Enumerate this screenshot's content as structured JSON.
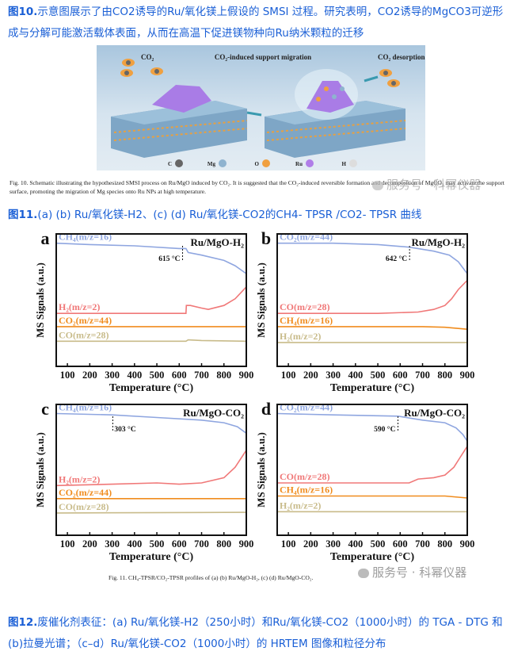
{
  "paragraphs": {
    "fig10": {
      "label": "图10.",
      "text": "示意图展示了由CO2诱导的Ru/氧化镁上假设的 SMSI 过程。研究表明，CO2诱导的MgCO3可逆形成与分解可能激活载体表面，从而在高温下促进镁物种向Ru纳米颗粒的迁移"
    },
    "fig11": {
      "label": "图11.",
      "text": "(a) (b) Ru/氧化镁-H2、(c) (d) Ru/氧化镁-CO2的CH4- TPSR /CO2- TPSR 曲线"
    },
    "fig12": {
      "label": "图12.",
      "text": "废催化剂表征：(a) Ru/氧化镁-H2（250小时）和Ru/氧化镁-CO2（1000小时）的 TGA - DTG 和(b)拉曼光谱；（c–d）Ru/氧化镁-CO2（1000小时）的 HRTEM 图像和粒径分布"
    }
  },
  "figure10": {
    "labels": {
      "co2": "CO₂",
      "migration": "CO₂-induced support migration",
      "desorption": "CO₂ desorption"
    },
    "legend": [
      {
        "symbol": "C",
        "color": "#666666"
      },
      {
        "symbol": "Mg",
        "color": "#8fb3cf"
      },
      {
        "symbol": "O",
        "color": "#f0a040"
      },
      {
        "symbol": "Ru",
        "color": "#b07ee8"
      },
      {
        "symbol": "H",
        "color": "#dddddd"
      }
    ],
    "caption": "Fig. 10. Schematic illustrating the hypothesized SMSI process on Ru/MgO induced by CO₂. It is suggested that the CO₂-induced reversible formation and decomposition of MgCO₃ may activate the support surface, promoting the migration of Mg species onto Ru NPs at high temperature."
  },
  "figure11_caption": "Fig. 11. CH₄-TPSR/CO₂-TPSR profiles of (a) (b) Ru/MgO-H₂, (c) (d) Ru/MgO-CO₂.",
  "watermark": "服务号 · 科幂仪器",
  "chart_data": [
    {
      "type": "line",
      "panel": "a",
      "title": "Ru/MgO-H₂",
      "xlabel": "Temperature (°C)",
      "ylabel": "MS Signals (a.u.)",
      "xlim": [
        50,
        900
      ],
      "xticks": [
        100,
        200,
        300,
        400,
        500,
        600,
        700,
        800,
        900
      ],
      "annotation": {
        "x": 615,
        "text": "615 °C"
      },
      "series": [
        {
          "name": "CH₄(m/z=16)",
          "color": "#8fa6e0",
          "x": [
            50,
            200,
            400,
            600,
            630,
            640,
            700,
            800,
            850,
            900
          ],
          "y": [
            0.93,
            0.92,
            0.91,
            0.89,
            0.89,
            0.86,
            0.84,
            0.8,
            0.76,
            0.7
          ]
        },
        {
          "name": "H₂(m/z=2)",
          "color": "#f07878",
          "x": [
            50,
            300,
            630,
            632,
            650,
            700,
            730,
            800,
            850,
            900
          ],
          "y": [
            0.4,
            0.4,
            0.4,
            0.46,
            0.46,
            0.44,
            0.43,
            0.46,
            0.51,
            0.6
          ]
        },
        {
          "name": "CO₂(m/z=44)",
          "color": "#f08c1e",
          "x": [
            50,
            900
          ],
          "y": [
            0.3,
            0.3
          ]
        },
        {
          "name": "CO(m/z=28)",
          "color": "#c8bb8a",
          "x": [
            50,
            630,
            640,
            700,
            900
          ],
          "y": [
            0.19,
            0.19,
            0.2,
            0.195,
            0.19
          ]
        }
      ]
    },
    {
      "type": "line",
      "panel": "b",
      "title": "Ru/MgO-H₂",
      "xlabel": "Temperature (°C)",
      "ylabel": "MS Signals (a.u.)",
      "xlim": [
        50,
        900
      ],
      "xticks": [
        100,
        200,
        300,
        400,
        500,
        600,
        700,
        800,
        900
      ],
      "annotation": {
        "x": 642,
        "text": "642 °C"
      },
      "series": [
        {
          "name": "CO₂(m/z=44)",
          "color": "#8fa6e0",
          "x": [
            50,
            300,
            500,
            640,
            750,
            820,
            860,
            900
          ],
          "y": [
            0.93,
            0.93,
            0.92,
            0.9,
            0.87,
            0.84,
            0.79,
            0.7
          ]
        },
        {
          "name": "CO(m/z=28)",
          "color": "#f07878",
          "x": [
            50,
            500,
            680,
            750,
            800,
            830,
            860,
            900
          ],
          "y": [
            0.4,
            0.4,
            0.41,
            0.43,
            0.46,
            0.51,
            0.58,
            0.65
          ]
        },
        {
          "name": "CH₄(m/z=16)",
          "color": "#f08c1e",
          "x": [
            50,
            700,
            800,
            900
          ],
          "y": [
            0.3,
            0.3,
            0.295,
            0.28
          ]
        },
        {
          "name": "H₂(m/z=2)",
          "color": "#c8bb8a",
          "x": [
            50,
            900
          ],
          "y": [
            0.18,
            0.18
          ]
        }
      ]
    },
    {
      "type": "line",
      "panel": "c",
      "title": "Ru/MgO-CO₂",
      "xlabel": "Temperature (°C)",
      "ylabel": "MS Signals (a.u.)",
      "xlim": [
        50,
        900
      ],
      "xticks": [
        100,
        200,
        300,
        400,
        500,
        600,
        700,
        800,
        900
      ],
      "annotation": {
        "x": 303,
        "text": "303 °C"
      },
      "series": [
        {
          "name": "CH₄(m/z=16)",
          "color": "#8fa6e0",
          "x": [
            50,
            300,
            500,
            700,
            800,
            860,
            900
          ],
          "y": [
            0.93,
            0.92,
            0.9,
            0.88,
            0.86,
            0.83,
            0.78
          ]
        },
        {
          "name": "H₂(m/z=2)",
          "color": "#f07878",
          "x": [
            50,
            300,
            500,
            600,
            700,
            800,
            850,
            900
          ],
          "y": [
            0.38,
            0.39,
            0.4,
            0.39,
            0.4,
            0.44,
            0.52,
            0.65
          ]
        },
        {
          "name": "CO₂(m/z=44)",
          "color": "#f08c1e",
          "x": [
            50,
            900
          ],
          "y": [
            0.28,
            0.28
          ]
        },
        {
          "name": "CO(m/z=28)",
          "color": "#c8bb8a",
          "x": [
            50,
            900
          ],
          "y": [
            0.17,
            0.175
          ]
        }
      ]
    },
    {
      "type": "line",
      "panel": "d",
      "title": "Ru/MgO-CO₂",
      "xlabel": "Temperature (°C)",
      "ylabel": "MS Signals (a.u.)",
      "xlim": [
        50,
        900
      ],
      "xticks": [
        100,
        200,
        300,
        400,
        500,
        600,
        700,
        800,
        900
      ],
      "annotation": {
        "x": 590,
        "text": "590 °C"
      },
      "series": [
        {
          "name": "CO₂(m/z=44)",
          "color": "#8fa6e0",
          "x": [
            50,
            300,
            590,
            700,
            800,
            850,
            880,
            900
          ],
          "y": [
            0.93,
            0.92,
            0.91,
            0.88,
            0.86,
            0.82,
            0.77,
            0.72
          ]
        },
        {
          "name": "CO(m/z=28)",
          "color": "#f07878",
          "x": [
            50,
            640,
            680,
            750,
            800,
            840,
            870,
            900
          ],
          "y": [
            0.4,
            0.4,
            0.43,
            0.44,
            0.46,
            0.52,
            0.6,
            0.68
          ]
        },
        {
          "name": "CH₄(m/z=16)",
          "color": "#f08c1e",
          "x": [
            50,
            800,
            900
          ],
          "y": [
            0.3,
            0.3,
            0.285
          ]
        },
        {
          "name": "H₂(m/z=2)",
          "color": "#c8bb8a",
          "x": [
            50,
            900
          ],
          "y": [
            0.18,
            0.18
          ]
        }
      ]
    }
  ]
}
